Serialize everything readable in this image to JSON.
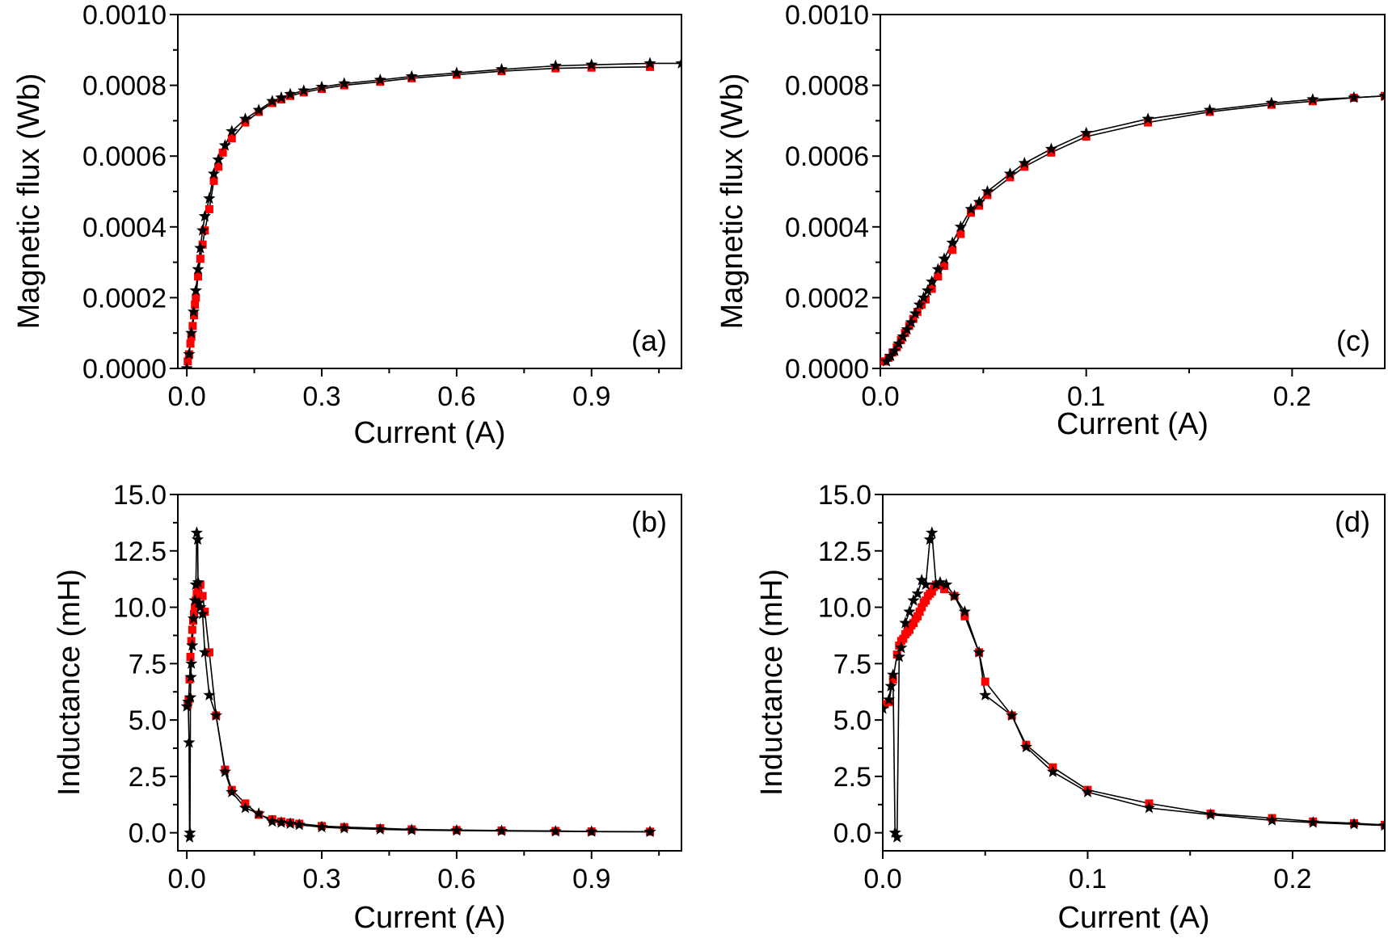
{
  "chart_data": [
    {
      "type": "line",
      "panel_label": "(a)",
      "label_position": "bottom-right",
      "xlabel": "Current (A)",
      "ylabel": "Magnetic flux (Wb)",
      "xlim": [
        -0.02,
        1.1
      ],
      "ylim": [
        0,
        0.001
      ],
      "xticks": [
        0.0,
        0.3,
        0.6,
        0.9
      ],
      "xtick_labels": [
        "0.0",
        "0.3",
        "0.6",
        "0.9"
      ],
      "yticks": [
        0,
        0.0002,
        0.0004,
        0.0006,
        0.0008,
        0.001
      ],
      "ytick_labels": [
        "0.0000",
        "0.0002",
        "0.0004",
        "0.0006",
        "0.0008",
        "0.0010"
      ],
      "series": [
        {
          "name": "star series",
          "marker": "star",
          "color": "#000000",
          "x": [
            0.0,
            0.005,
            0.01,
            0.015,
            0.02,
            0.025,
            0.03,
            0.035,
            0.04,
            0.05,
            0.06,
            0.07,
            0.085,
            0.1,
            0.13,
            0.16,
            0.19,
            0.21,
            0.23,
            0.26,
            0.3,
            0.35,
            0.43,
            0.5,
            0.6,
            0.7,
            0.82,
            0.9,
            1.03,
            1.1
          ],
          "y": [
            0.0,
            4e-05,
            0.0001,
            0.00016,
            0.00022,
            0.00028,
            0.00034,
            0.00039,
            0.00043,
            0.00048,
            0.00055,
            0.00059,
            0.00063,
            0.00067,
            0.000705,
            0.00073,
            0.000755,
            0.000765,
            0.000775,
            0.000785,
            0.000795,
            0.000805,
            0.000815,
            0.000825,
            0.000835,
            0.000845,
            0.000855,
            0.000858,
            0.000862,
            0.000862
          ]
        },
        {
          "name": "square series",
          "marker": "square",
          "color": "#ff0000",
          "x": [
            0.002,
            0.005,
            0.008,
            0.01,
            0.013,
            0.016,
            0.018,
            0.02,
            0.025,
            0.03,
            0.035,
            0.04,
            0.05,
            0.06,
            0.07,
            0.08,
            0.1,
            0.13,
            0.16,
            0.19,
            0.21,
            0.23,
            0.26,
            0.3,
            0.35,
            0.43,
            0.5,
            0.6,
            0.7,
            0.82,
            0.9,
            1.03
          ],
          "y": [
            2e-05,
            4e-05,
            7e-05,
            9e-05,
            0.00012,
            0.00015,
            0.00018,
            0.0002,
            0.00026,
            0.00031,
            0.00035,
            0.00039,
            0.00045,
            0.00053,
            0.00057,
            0.00061,
            0.00065,
            0.000695,
            0.000725,
            0.00075,
            0.00076,
            0.00077,
            0.00078,
            0.00079,
            0.0008,
            0.00081,
            0.00082,
            0.00083,
            0.00084,
            0.000848,
            0.00085,
            0.000852
          ]
        }
      ]
    },
    {
      "type": "line",
      "panel_label": "(b)",
      "label_position": "top-right",
      "xlabel": "Current (A)",
      "ylabel": "Inductance (mH)",
      "xlim": [
        -0.02,
        1.1
      ],
      "ylim": [
        -0.8,
        15
      ],
      "xticks": [
        0.0,
        0.3,
        0.6,
        0.9
      ],
      "xtick_labels": [
        "0.0",
        "0.3",
        "0.6",
        "0.9"
      ],
      "yticks": [
        0,
        2.5,
        5,
        7.5,
        10,
        12.5,
        15
      ],
      "ytick_labels": [
        "0.0",
        "2.5",
        "5.0",
        "7.5",
        "10.0",
        "12.5",
        "15.0"
      ],
      "series": [
        {
          "name": "star series",
          "marker": "star",
          "color": "#000000",
          "x": [
            0.0,
            0.003,
            0.005,
            0.006,
            0.007,
            0.008,
            0.009,
            0.01,
            0.012,
            0.015,
            0.018,
            0.02,
            0.022,
            0.024,
            0.025,
            0.027,
            0.03,
            0.035,
            0.04,
            0.05,
            0.065,
            0.085,
            0.1,
            0.13,
            0.16,
            0.19,
            0.21,
            0.23,
            0.25,
            0.3,
            0.35,
            0.43,
            0.5,
            0.6,
            0.7,
            0.82,
            0.9,
            1.03
          ],
          "y": [
            5.6,
            5.8,
            4.0,
            -0.2,
            0.0,
            6.0,
            6.9,
            7.5,
            8.3,
            9.5,
            10.3,
            11.0,
            13.3,
            13.0,
            11.1,
            10.2,
            10.0,
            9.7,
            8.0,
            6.1,
            5.2,
            2.7,
            1.8,
            1.1,
            0.85,
            0.5,
            0.45,
            0.4,
            0.35,
            0.25,
            0.2,
            0.15,
            0.12,
            0.1,
            0.08,
            0.06,
            0.05,
            0.04
          ]
        },
        {
          "name": "square series",
          "marker": "square",
          "color": "#ff0000",
          "x": [
            0.002,
            0.004,
            0.006,
            0.008,
            0.01,
            0.012,
            0.014,
            0.016,
            0.018,
            0.02,
            0.022,
            0.025,
            0.028,
            0.03,
            0.035,
            0.04,
            0.05,
            0.065,
            0.085,
            0.1,
            0.13,
            0.16,
            0.19,
            0.21,
            0.23,
            0.25,
            0.3,
            0.35,
            0.43,
            0.5,
            0.6,
            0.7,
            0.82,
            0.9,
            1.03
          ],
          "y": [
            5.7,
            5.9,
            6.8,
            7.8,
            8.5,
            9.0,
            9.4,
            9.7,
            10.0,
            10.3,
            10.6,
            10.9,
            11.0,
            11.0,
            10.5,
            9.8,
            8.0,
            5.2,
            2.8,
            1.9,
            1.3,
            0.8,
            0.6,
            0.5,
            0.45,
            0.4,
            0.3,
            0.25,
            0.2,
            0.15,
            0.12,
            0.1,
            0.08,
            0.06,
            0.05
          ]
        }
      ]
    },
    {
      "type": "line",
      "panel_label": "(c)",
      "label_position": "bottom-right",
      "xlabel": "Current (A)",
      "ylabel": "Magnetic flux (Wb)",
      "xlim": [
        0,
        0.245
      ],
      "ylim": [
        0,
        0.001
      ],
      "xticks": [
        0.0,
        0.1,
        0.2
      ],
      "xtick_labels": [
        "0.0",
        "0.1",
        "0.2"
      ],
      "yticks": [
        0,
        0.0002,
        0.0004,
        0.0006,
        0.0008,
        0.001
      ],
      "ytick_labels": [
        "0.0000",
        "0.0002",
        "0.0004",
        "0.0006",
        "0.0008",
        "0.0010"
      ],
      "series": [
        {
          "name": "star series",
          "marker": "star",
          "color": "#000000",
          "x": [
            0.003,
            0.005,
            0.007,
            0.009,
            0.011,
            0.013,
            0.015,
            0.017,
            0.019,
            0.021,
            0.023,
            0.025,
            0.028,
            0.031,
            0.035,
            0.039,
            0.044,
            0.048,
            0.052,
            0.063,
            0.07,
            0.083,
            0.1,
            0.13,
            0.16,
            0.19,
            0.21,
            0.23,
            0.245
          ],
          "y": [
            2e-05,
            3.5e-05,
            5e-05,
            7e-05,
            9e-05,
            0.00011,
            0.00013,
            0.000155,
            0.00018,
            0.0002,
            0.00022,
            0.000245,
            0.00028,
            0.00031,
            0.000355,
            0.0004,
            0.00045,
            0.00047,
            0.0005,
            0.00055,
            0.00058,
            0.00062,
            0.000665,
            0.000705,
            0.00073,
            0.00075,
            0.00076,
            0.000765,
            0.00077
          ]
        },
        {
          "name": "square series",
          "marker": "square",
          "color": "#ff0000",
          "x": [
            0.002,
            0.004,
            0.006,
            0.008,
            0.01,
            0.012,
            0.014,
            0.016,
            0.018,
            0.02,
            0.022,
            0.025,
            0.028,
            0.031,
            0.035,
            0.039,
            0.044,
            0.048,
            0.052,
            0.063,
            0.07,
            0.083,
            0.1,
            0.13,
            0.16,
            0.19,
            0.21,
            0.23,
            0.245
          ],
          "y": [
            2e-05,
            3e-05,
            4.5e-05,
            6e-05,
            8e-05,
            0.0001,
            0.00012,
            0.00014,
            0.00016,
            0.00018,
            0.000195,
            0.000225,
            0.00026,
            0.00029,
            0.000335,
            0.00038,
            0.00044,
            0.00046,
            0.00049,
            0.00054,
            0.00057,
            0.00061,
            0.000655,
            0.000695,
            0.000725,
            0.000745,
            0.000755,
            0.000765,
            0.00077
          ]
        }
      ]
    },
    {
      "type": "line",
      "panel_label": "(d)",
      "label_position": "top-right",
      "xlabel": "Current (A)",
      "ylabel": "Inductance (mH)",
      "xlim": [
        0,
        0.245
      ],
      "ylim": [
        -0.8,
        15
      ],
      "xticks": [
        0.0,
        0.1,
        0.2
      ],
      "xtick_labels": [
        "0.0",
        "0.1",
        "0.2"
      ],
      "yticks": [
        0,
        2.5,
        5,
        7.5,
        10,
        12.5,
        15
      ],
      "ytick_labels": [
        "0.0",
        "2.5",
        "5.0",
        "7.5",
        "10.0",
        "12.5",
        "15.0"
      ],
      "series": [
        {
          "name": "star series",
          "marker": "star",
          "color": "#000000",
          "x": [
            0.0,
            0.003,
            0.004,
            0.005,
            0.006,
            0.007,
            0.008,
            0.009,
            0.011,
            0.013,
            0.015,
            0.017,
            0.019,
            0.021,
            0.023,
            0.024,
            0.026,
            0.028,
            0.031,
            0.035,
            0.04,
            0.047,
            0.05,
            0.063,
            0.07,
            0.083,
            0.1,
            0.13,
            0.16,
            0.19,
            0.21,
            0.23,
            0.245
          ],
          "y": [
            5.5,
            5.9,
            6.5,
            7.0,
            0.0,
            -0.2,
            7.8,
            8.2,
            9.3,
            9.8,
            10.3,
            10.6,
            11.2,
            11.0,
            13.0,
            13.3,
            11.0,
            11.1,
            11.0,
            10.5,
            9.8,
            8.0,
            6.1,
            5.2,
            3.8,
            2.7,
            1.8,
            1.1,
            0.8,
            0.55,
            0.45,
            0.38,
            0.32
          ]
        },
        {
          "name": "square series",
          "marker": "square",
          "color": "#ff0000",
          "x": [
            0.001,
            0.003,
            0.005,
            0.007,
            0.008,
            0.009,
            0.01,
            0.011,
            0.012,
            0.013,
            0.014,
            0.015,
            0.016,
            0.017,
            0.018,
            0.019,
            0.02,
            0.021,
            0.022,
            0.023,
            0.024,
            0.025,
            0.026,
            0.03,
            0.035,
            0.04,
            0.047,
            0.05,
            0.063,
            0.07,
            0.083,
            0.1,
            0.13,
            0.16,
            0.19,
            0.21,
            0.23,
            0.245
          ],
          "y": [
            5.7,
            5.8,
            6.8,
            7.9,
            8.3,
            8.5,
            8.6,
            8.8,
            8.9,
            9.0,
            9.2,
            9.3,
            9.5,
            9.6,
            9.8,
            10.0,
            10.2,
            10.3,
            10.5,
            10.6,
            10.7,
            10.9,
            11.0,
            10.8,
            10.5,
            9.6,
            8.0,
            6.7,
            5.2,
            3.9,
            2.9,
            1.9,
            1.3,
            0.85,
            0.65,
            0.5,
            0.42,
            0.35
          ]
        }
      ]
    }
  ]
}
